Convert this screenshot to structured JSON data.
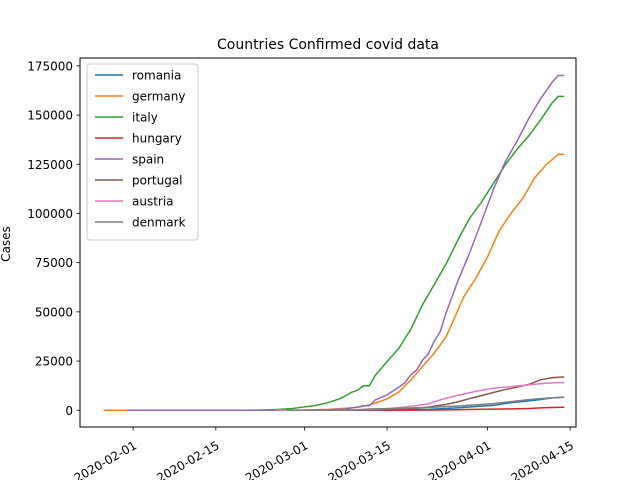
{
  "chart_data": {
    "type": "line",
    "title": "Countries Confirmed covid data",
    "xlabel": "",
    "ylabel": "Cases",
    "x_axis": "date",
    "xlim": [
      "2020-01-23",
      "2020-04-16"
    ],
    "ylim": [
      -8500,
      179000
    ],
    "x_ticks": [
      "2020-02-01",
      "2020-02-15",
      "2020-03-01",
      "2020-03-15",
      "2020-04-01",
      "2020-04-15"
    ],
    "y_ticks": [
      0,
      25000,
      50000,
      75000,
      100000,
      125000,
      150000,
      175000
    ],
    "y_tick_labels": [
      "0",
      "25000",
      "50000",
      "75000",
      "100000",
      "125000",
      "150000",
      "175000"
    ],
    "grid": false,
    "legend_position": "upper-left",
    "series": [
      {
        "name": "romania",
        "color": "#1f77b4",
        "points": [
          [
            "2020-01-31",
            0
          ],
          [
            "2020-02-26",
            1
          ],
          [
            "2020-03-01",
            3
          ],
          [
            "2020-03-05",
            4
          ],
          [
            "2020-03-10",
            25
          ],
          [
            "2020-03-13",
            89
          ],
          [
            "2020-03-15",
            131
          ],
          [
            "2020-03-18",
            260
          ],
          [
            "2020-03-20",
            308
          ],
          [
            "2020-03-22",
            433
          ],
          [
            "2020-03-25",
            906
          ],
          [
            "2020-03-28",
            1452
          ],
          [
            "2020-03-31",
            2109
          ],
          [
            "2020-04-02",
            2460
          ],
          [
            "2020-04-05",
            3864
          ],
          [
            "2020-04-08",
            4761
          ],
          [
            "2020-04-10",
            5467
          ],
          [
            "2020-04-12",
            6300
          ],
          [
            "2020-04-14",
            6633
          ]
        ]
      },
      {
        "name": "germany",
        "color": "#ff7f0e",
        "points": [
          [
            "2020-01-27",
            0
          ],
          [
            "2020-02-01",
            8
          ],
          [
            "2020-02-15",
            16
          ],
          [
            "2020-02-25",
            18
          ],
          [
            "2020-03-01",
            130
          ],
          [
            "2020-03-05",
            482
          ],
          [
            "2020-03-08",
            1040
          ],
          [
            "2020-03-10",
            1457
          ],
          [
            "2020-03-12",
            2745
          ],
          [
            "2020-03-13",
            3675
          ],
          [
            "2020-03-15",
            5795
          ],
          [
            "2020-03-17",
            9257
          ],
          [
            "2020-03-19",
            15320
          ],
          [
            "2020-03-21",
            22213
          ],
          [
            "2020-03-23",
            29056
          ],
          [
            "2020-03-25",
            37323
          ],
          [
            "2020-03-27",
            50871
          ],
          [
            "2020-03-28",
            57695
          ],
          [
            "2020-03-30",
            66885
          ],
          [
            "2020-04-01",
            77872
          ],
          [
            "2020-04-03",
            91159
          ],
          [
            "2020-04-05",
            100123
          ],
          [
            "2020-04-07",
            107663
          ],
          [
            "2020-04-09",
            118181
          ],
          [
            "2020-04-11",
            124908
          ],
          [
            "2020-04-13",
            130072
          ],
          [
            "2020-04-14",
            130072
          ]
        ]
      },
      {
        "name": "italy",
        "color": "#2ca02c",
        "points": [
          [
            "2020-01-31",
            0
          ],
          [
            "2020-02-20",
            3
          ],
          [
            "2020-02-22",
            62
          ],
          [
            "2020-02-25",
            322
          ],
          [
            "2020-02-28",
            888
          ],
          [
            "2020-03-01",
            1694
          ],
          [
            "2020-03-03",
            2502
          ],
          [
            "2020-03-05",
            3858
          ],
          [
            "2020-03-07",
            5883
          ],
          [
            "2020-03-08",
            7375
          ],
          [
            "2020-03-09",
            9172
          ],
          [
            "2020-03-10",
            10149
          ],
          [
            "2020-03-11",
            12462
          ],
          [
            "2020-03-12",
            12462
          ],
          [
            "2020-03-13",
            17660
          ],
          [
            "2020-03-15",
            24747
          ],
          [
            "2020-03-17",
            31506
          ],
          [
            "2020-03-19",
            41035
          ],
          [
            "2020-03-21",
            53578
          ],
          [
            "2020-03-23",
            63927
          ],
          [
            "2020-03-25",
            74386
          ],
          [
            "2020-03-27",
            86498
          ],
          [
            "2020-03-29",
            97689
          ],
          [
            "2020-03-31",
            105792
          ],
          [
            "2020-04-02",
            115242
          ],
          [
            "2020-04-04",
            124632
          ],
          [
            "2020-04-06",
            132547
          ],
          [
            "2020-04-08",
            139422
          ],
          [
            "2020-04-10",
            147577
          ],
          [
            "2020-04-12",
            156363
          ],
          [
            "2020-04-13",
            159516
          ],
          [
            "2020-04-14",
            159516
          ]
        ]
      },
      {
        "name": "hungary",
        "color": "#d62728",
        "points": [
          [
            "2020-03-04",
            0
          ],
          [
            "2020-03-10",
            12
          ],
          [
            "2020-03-15",
            32
          ],
          [
            "2020-03-20",
            85
          ],
          [
            "2020-03-25",
            226
          ],
          [
            "2020-03-30",
            447
          ],
          [
            "2020-04-02",
            585
          ],
          [
            "2020-04-05",
            733
          ],
          [
            "2020-04-08",
            895
          ],
          [
            "2020-04-10",
            1190
          ],
          [
            "2020-04-12",
            1410
          ],
          [
            "2020-04-14",
            1512
          ]
        ]
      },
      {
        "name": "spain",
        "color": "#9467bd",
        "points": [
          [
            "2020-01-31",
            0
          ],
          [
            "2020-02-25",
            6
          ],
          [
            "2020-03-01",
            84
          ],
          [
            "2020-03-05",
            282
          ],
          [
            "2020-03-08",
            673
          ],
          [
            "2020-03-10",
            1695
          ],
          [
            "2020-03-11",
            2277
          ],
          [
            "2020-03-12",
            2277
          ],
          [
            "2020-03-13",
            5232
          ],
          [
            "2020-03-15",
            7798
          ],
          [
            "2020-03-17",
            11748
          ],
          [
            "2020-03-18",
            13910
          ],
          [
            "2020-03-19",
            17963
          ],
          [
            "2020-03-20",
            20410
          ],
          [
            "2020-03-21",
            25374
          ],
          [
            "2020-03-22",
            28768
          ],
          [
            "2020-03-23",
            35136
          ],
          [
            "2020-03-24",
            39885
          ],
          [
            "2020-03-25",
            49515
          ],
          [
            "2020-03-27",
            65719
          ],
          [
            "2020-03-29",
            80110
          ],
          [
            "2020-03-31",
            95923
          ],
          [
            "2020-04-02",
            112065
          ],
          [
            "2020-04-04",
            126168
          ],
          [
            "2020-04-06",
            136675
          ],
          [
            "2020-04-08",
            148220
          ],
          [
            "2020-04-10",
            158273
          ],
          [
            "2020-04-12",
            166831
          ],
          [
            "2020-04-13",
            170099
          ],
          [
            "2020-04-14",
            170099
          ]
        ]
      },
      {
        "name": "portugal",
        "color": "#8c564b",
        "points": [
          [
            "2020-03-02",
            0
          ],
          [
            "2020-03-05",
            8
          ],
          [
            "2020-03-10",
            41
          ],
          [
            "2020-03-15",
            245
          ],
          [
            "2020-03-18",
            642
          ],
          [
            "2020-03-20",
            1020
          ],
          [
            "2020-03-22",
            1600
          ],
          [
            "2020-03-25",
            2995
          ],
          [
            "2020-03-27",
            4268
          ],
          [
            "2020-03-29",
            5962
          ],
          [
            "2020-03-31",
            7443
          ],
          [
            "2020-04-02",
            9034
          ],
          [
            "2020-04-04",
            10524
          ],
          [
            "2020-04-06",
            11730
          ],
          [
            "2020-04-08",
            13141
          ],
          [
            "2020-04-10",
            15472
          ],
          [
            "2020-04-12",
            16585
          ],
          [
            "2020-04-14",
            16934
          ]
        ]
      },
      {
        "name": "austria",
        "color": "#e377c2",
        "points": [
          [
            "2020-02-25",
            0
          ],
          [
            "2020-03-01",
            10
          ],
          [
            "2020-03-05",
            41
          ],
          [
            "2020-03-10",
            182
          ],
          [
            "2020-03-13",
            504
          ],
          [
            "2020-03-16",
            1018
          ],
          [
            "2020-03-18",
            1646
          ],
          [
            "2020-03-20",
            2388
          ],
          [
            "2020-03-22",
            3244
          ],
          [
            "2020-03-24",
            5282
          ],
          [
            "2020-03-26",
            6909
          ],
          [
            "2020-03-28",
            8271
          ],
          [
            "2020-03-30",
            9618
          ],
          [
            "2020-04-01",
            10711
          ],
          [
            "2020-04-03",
            11525
          ],
          [
            "2020-04-05",
            12051
          ],
          [
            "2020-04-07",
            12640
          ],
          [
            "2020-04-09",
            13244
          ],
          [
            "2020-04-11",
            13806
          ],
          [
            "2020-04-13",
            14041
          ],
          [
            "2020-04-14",
            14041
          ]
        ]
      },
      {
        "name": "denmark",
        "color": "#7f7f7f",
        "points": [
          [
            "2020-02-27",
            0
          ],
          [
            "2020-03-05",
            10
          ],
          [
            "2020-03-10",
            264
          ],
          [
            "2020-03-12",
            674
          ],
          [
            "2020-03-15",
            864
          ],
          [
            "2020-03-18",
            1077
          ],
          [
            "2020-03-21",
            1326
          ],
          [
            "2020-03-24",
            1724
          ],
          [
            "2020-03-27",
            2201
          ],
          [
            "2020-03-30",
            2755
          ],
          [
            "2020-04-02",
            3386
          ],
          [
            "2020-04-05",
            4369
          ],
          [
            "2020-04-08",
            5402
          ],
          [
            "2020-04-11",
            6191
          ],
          [
            "2020-04-14",
            6681
          ]
        ]
      }
    ]
  }
}
